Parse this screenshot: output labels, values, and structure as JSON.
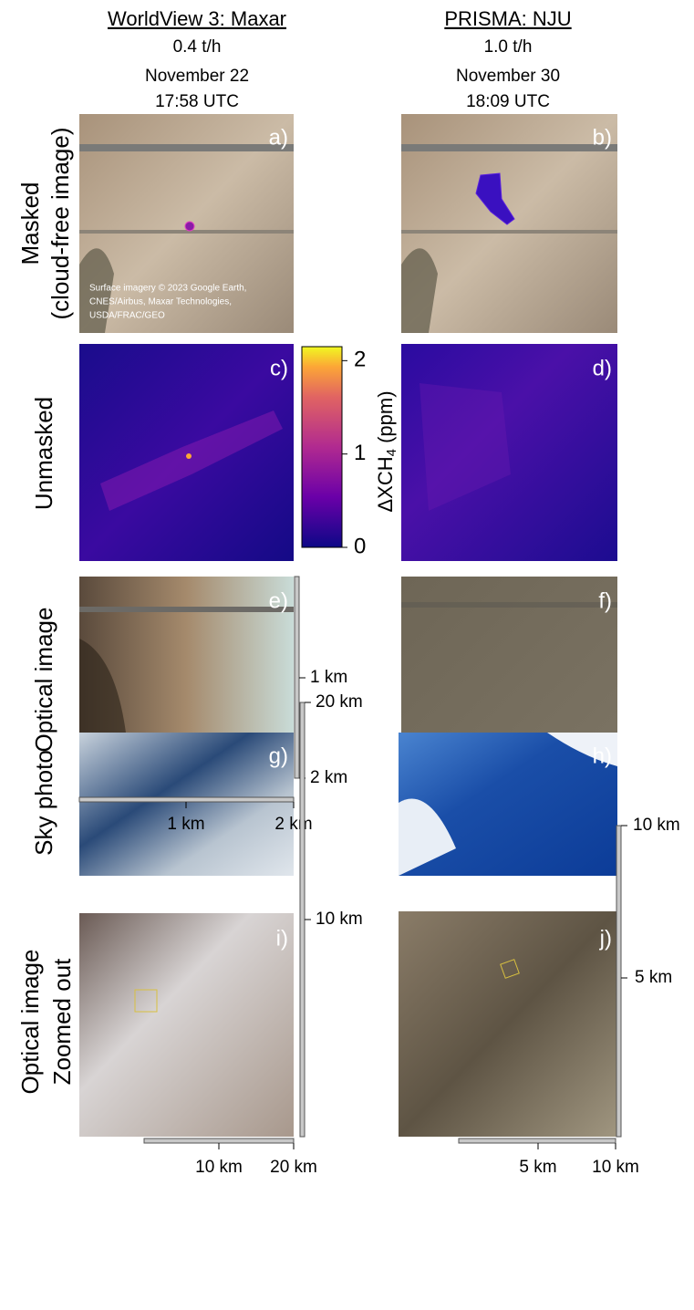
{
  "columns": [
    {
      "title": "WorldView 3: Maxar",
      "rate": "0.4 t/h",
      "date": "November 22",
      "time": "17:58 UTC"
    },
    {
      "title": "PRISMA: NJU",
      "rate": "1.0 t/h",
      "date": "November 30",
      "time": "18:09 UTC"
    }
  ],
  "rows": [
    {
      "lines": [
        "Masked",
        "(cloud-free image)"
      ]
    },
    {
      "lines": [
        "Unmasked"
      ]
    },
    {
      "lines": [
        "Optical image"
      ]
    },
    {
      "lines": [
        "Sky photo"
      ]
    },
    {
      "lines": [
        "Optical image",
        "Zoomed out"
      ]
    }
  ],
  "panels": [
    "a)",
    "b)",
    "c)",
    "d)",
    "e)",
    "f)",
    "g)",
    "h)",
    "i)",
    "j)"
  ],
  "attribution": [
    "Surface imagery © 2023 Google Earth,",
    "CNES/Airbus, Maxar Technologies,",
    "USDA/FRAC/GEO"
  ],
  "colorbar": {
    "label": "ΔXCH",
    "subscript": "4",
    "unit": " (ppm)",
    "lim": [
      0,
      2.15
    ],
    "ticks": [
      0,
      1,
      2
    ]
  },
  "scalebars": {
    "e": {
      "x": [
        "1 km",
        "2 km"
      ],
      "y": [
        "1 km",
        "2 km"
      ]
    },
    "i": {
      "x": [
        "10 km",
        "20 km"
      ],
      "y": [
        "10 km",
        "20 km"
      ]
    },
    "j": {
      "x": [
        "5 km",
        "10 km"
      ],
      "y": [
        "5 km",
        "10 km"
      ]
    }
  }
}
